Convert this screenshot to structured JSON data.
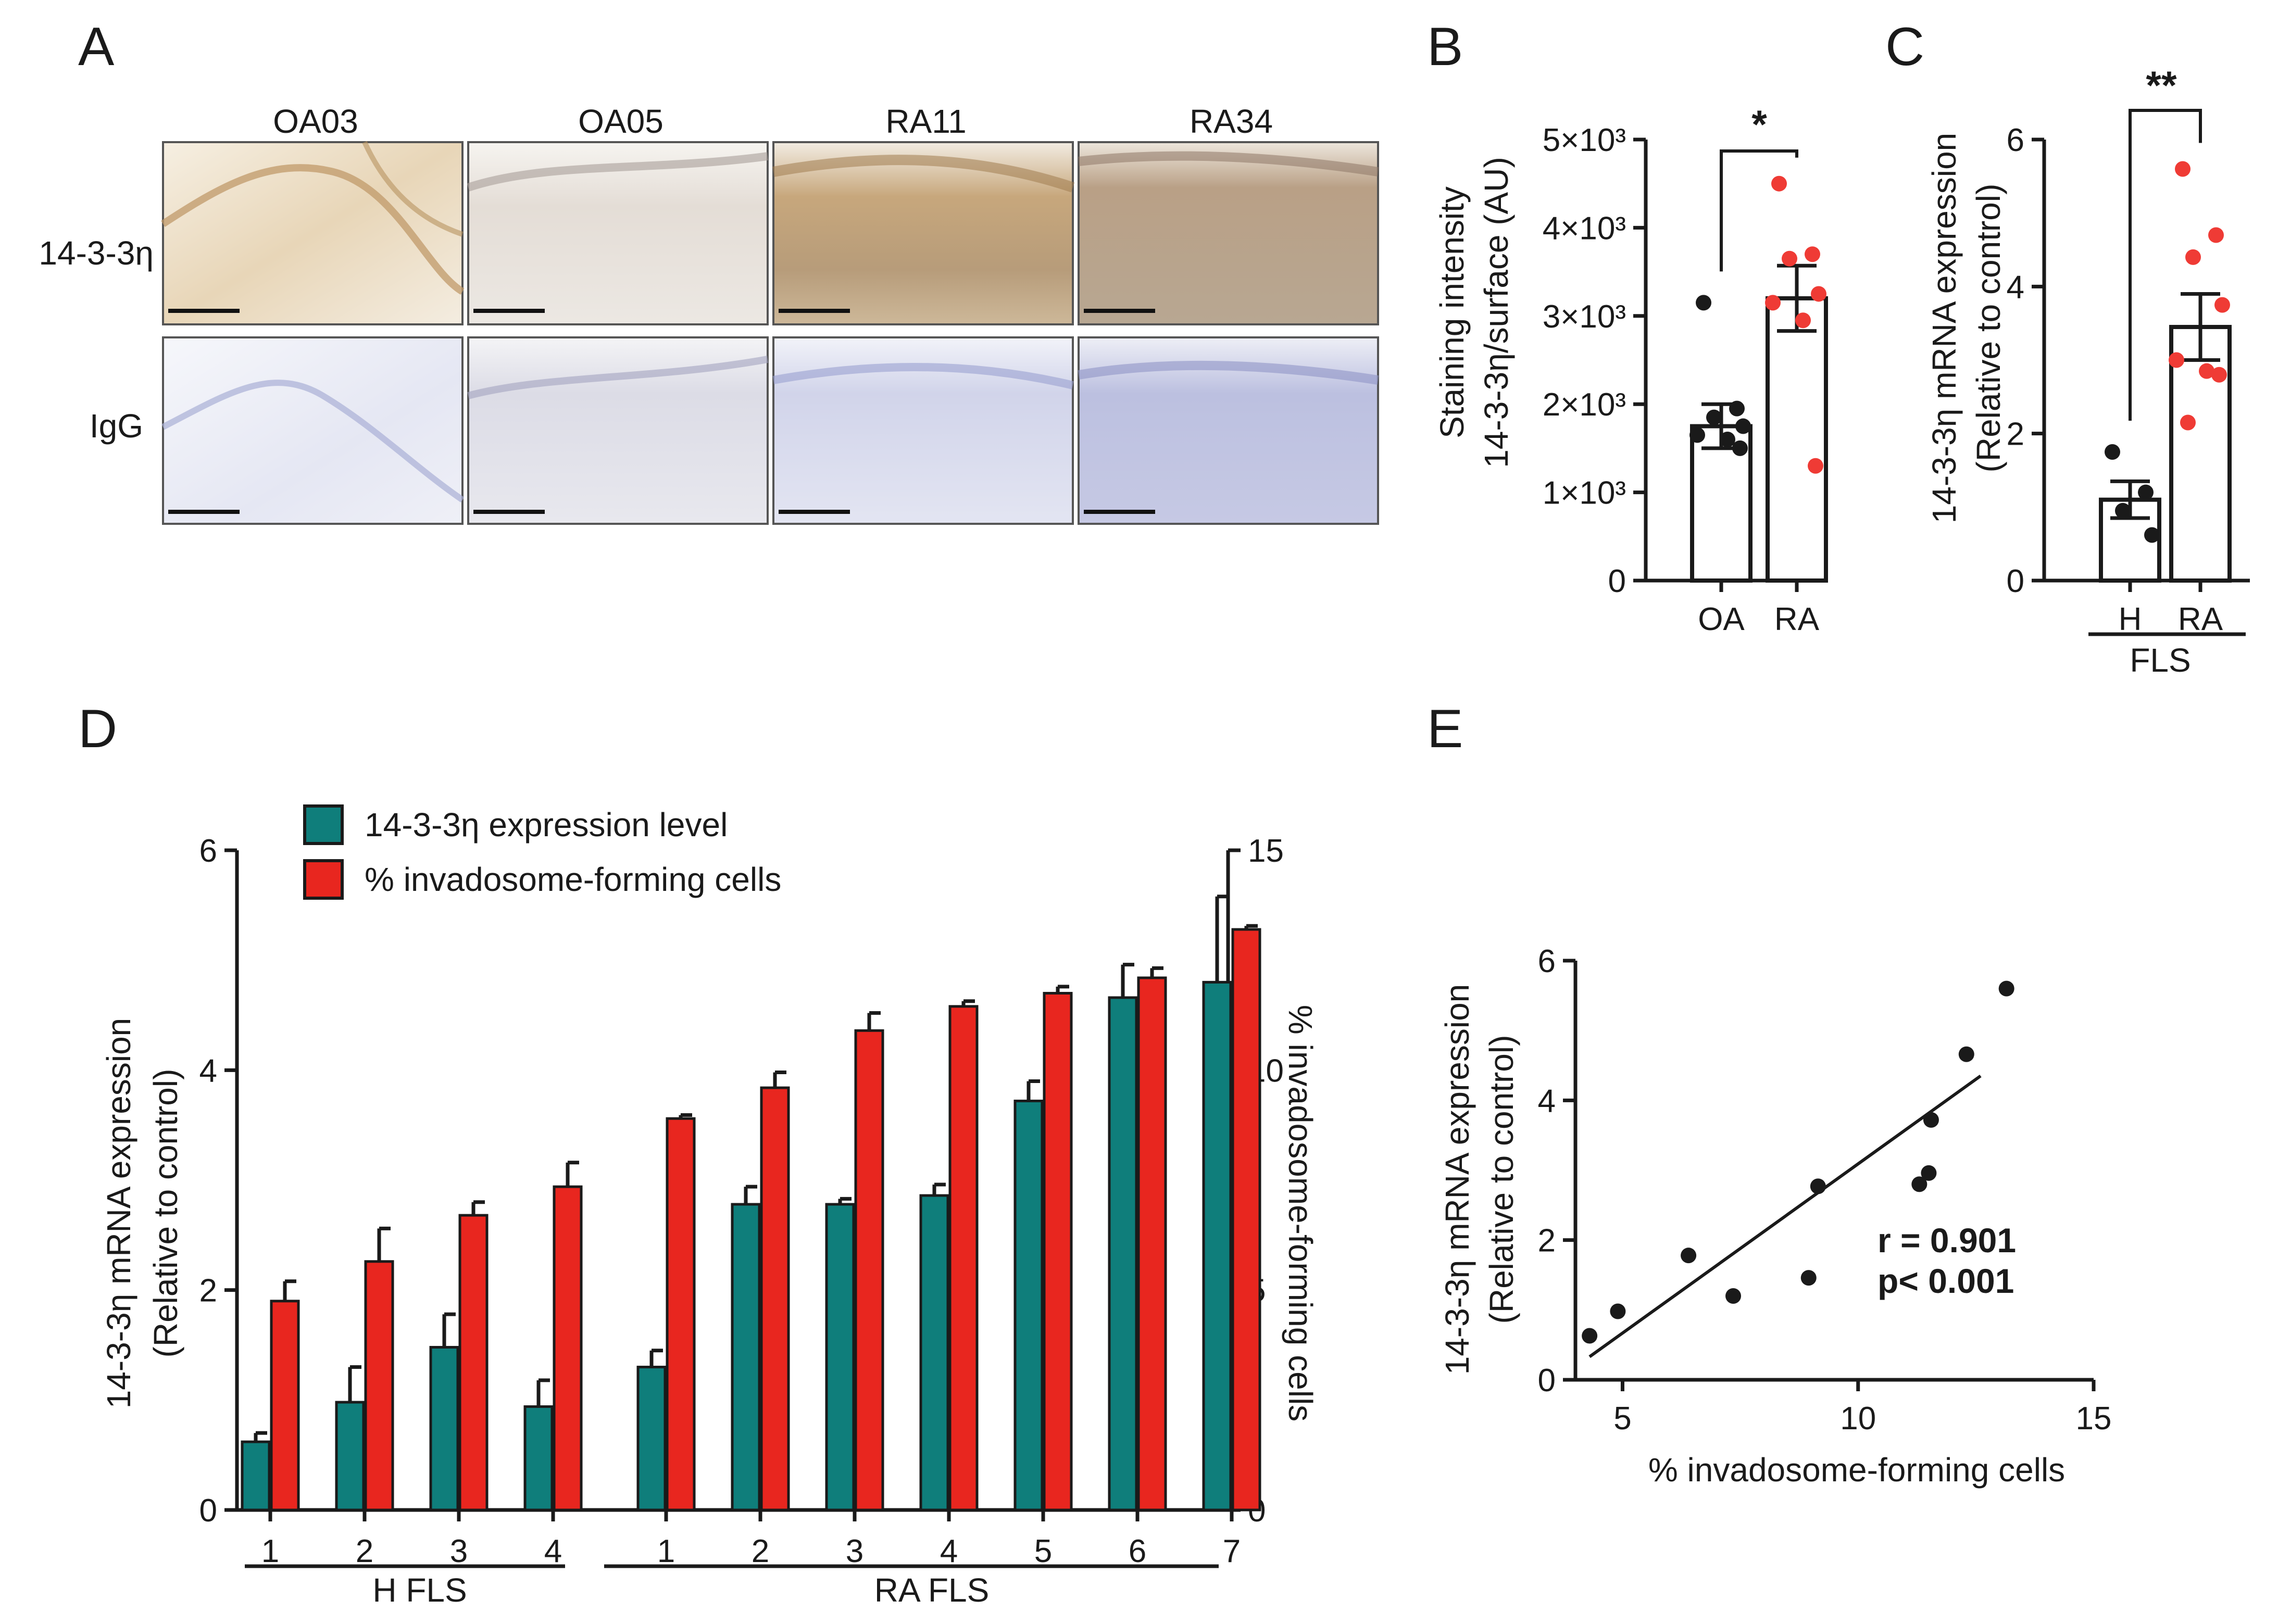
{
  "colors": {
    "teal": "#0f7e7b",
    "red": "#e8261f",
    "red_dot": "#ef3b35",
    "black": "#1a1a1a",
    "ihc_brown_bg": "#efe2cb",
    "ihc_brown_tissue": "#c9ad86",
    "igg_blue_bg": "#f3f4fa",
    "igg_blue_tissue": "#c7cbe6"
  },
  "panel_A": {
    "label": "A",
    "columns": [
      "OA03",
      "OA05",
      "RA11",
      "RA34"
    ],
    "rows": [
      "14-3-3η",
      "IgG"
    ],
    "micrographs": [
      {
        "row": 0,
        "col": 0,
        "stain": "brown-light"
      },
      {
        "row": 0,
        "col": 1,
        "stain": "pale"
      },
      {
        "row": 0,
        "col": 2,
        "stain": "brown-strong"
      },
      {
        "row": 0,
        "col": 3,
        "stain": "brown-purple"
      },
      {
        "row": 1,
        "col": 0,
        "stain": "blue-light"
      },
      {
        "row": 1,
        "col": 1,
        "stain": "blue-pale"
      },
      {
        "row": 1,
        "col": 2,
        "stain": "blue"
      },
      {
        "row": 1,
        "col": 3,
        "stain": "blue-strong"
      }
    ]
  },
  "panel_B": {
    "label": "B",
    "ylabel_line1": "Staining intensity",
    "ylabel_line2": "14-3-3η/surface (AU)",
    "yticks": [
      "0",
      "1×10³",
      "2×10³",
      "3×10³",
      "4×10³",
      "5×10³"
    ],
    "significance": "*",
    "chart_data": {
      "type": "bar",
      "categories": [
        "OA",
        "RA"
      ],
      "values": [
        1750,
        3200
      ],
      "sem": [
        250,
        370
      ],
      "ylim": [
        0,
        5000
      ],
      "points": {
        "OA": [
          3150,
          1950,
          1850,
          1750,
          1650,
          1600,
          1500
        ],
        "RA": [
          4500,
          3700,
          3650,
          3250,
          3150,
          2950,
          1300
        ]
      },
      "point_colors": {
        "OA": "#1a1a1a",
        "RA": "#ef3b35"
      }
    }
  },
  "panel_C": {
    "label": "C",
    "ylabel_line1": "14-3-3η mRNA expression",
    "ylabel_line2": "(Relative to control)",
    "yticks": [
      "0",
      "2",
      "4",
      "6"
    ],
    "group_label": "FLS",
    "significance": "**",
    "chart_data": {
      "type": "bar",
      "categories": [
        "H",
        "RA"
      ],
      "values": [
        1.1,
        3.45
      ],
      "sem": [
        0.25,
        0.45
      ],
      "ylim": [
        0,
        6
      ],
      "points": {
        "H": [
          1.75,
          1.2,
          0.95,
          0.62
        ],
        "RA": [
          5.6,
          4.7,
          4.4,
          3.75,
          3.0,
          2.85,
          2.8,
          2.15
        ]
      },
      "point_colors": {
        "H": "#1a1a1a",
        "RA": "#ef3b35"
      }
    }
  },
  "panel_D": {
    "label": "D",
    "ylabel_left_line1": "14-3-3η mRNA expression",
    "ylabel_left_line2": "(Relative to control)",
    "ylabel_right": "% invadosome-forming cells",
    "yticks_left": [
      "0",
      "2",
      "4",
      "6"
    ],
    "yticks_right": [
      "0",
      "5",
      "10",
      "15"
    ],
    "legend": [
      "14-3-3η expression level",
      "% invadosome-forming cells"
    ],
    "group_labels": [
      "H FLS",
      "RA FLS"
    ],
    "chart_data": {
      "type": "bar",
      "categories": [
        "1",
        "2",
        "3",
        "4",
        "1",
        "2",
        "3",
        "4",
        "5",
        "6",
        "7"
      ],
      "groups": [
        "H FLS",
        "H FLS",
        "H FLS",
        "H FLS",
        "RA FLS",
        "RA FLS",
        "RA FLS",
        "RA FLS",
        "RA FLS",
        "RA FLS",
        "RA FLS"
      ],
      "series": [
        {
          "name": "14-3-3η expression level",
          "axis": "left",
          "ylim": [
            0,
            6
          ],
          "values": [
            0.62,
            0.98,
            1.48,
            0.94,
            1.3,
            2.78,
            2.78,
            2.86,
            3.72,
            4.66,
            4.8
          ],
          "err": [
            0.08,
            0.32,
            0.3,
            0.24,
            0.15,
            0.16,
            0.05,
            0.1,
            0.18,
            0.3,
            0.78
          ]
        },
        {
          "name": "% invadosome-forming cells",
          "axis": "right",
          "ylim": [
            0,
            15
          ],
          "values": [
            4.75,
            5.65,
            6.7,
            7.35,
            8.9,
            9.6,
            10.9,
            11.45,
            11.75,
            12.1,
            13.2
          ],
          "err": [
            0.45,
            0.75,
            0.3,
            0.55,
            0.08,
            0.35,
            0.4,
            0.12,
            0.15,
            0.22,
            0.08
          ]
        }
      ]
    }
  },
  "panel_E": {
    "label": "E",
    "xlabel": "% invadosome-forming cells",
    "ylabel_line1": "14-3-3η mRNA expression",
    "ylabel_line2": "(Relative to control)",
    "xticks": [
      "5",
      "10",
      "15"
    ],
    "yticks": [
      "0",
      "2",
      "4",
      "6"
    ],
    "stat_r": "r = 0.901",
    "stat_p": "p< 0.001",
    "chart_data": {
      "type": "scatter",
      "xlim": [
        4,
        15
      ],
      "ylim": [
        0,
        6
      ],
      "x": [
        4.3,
        4.9,
        6.4,
        7.35,
        8.95,
        9.15,
        11.3,
        11.5,
        11.55,
        12.3,
        13.15
      ],
      "y": [
        0.63,
        0.98,
        1.78,
        1.2,
        1.46,
        2.77,
        2.8,
        2.96,
        3.72,
        4.66,
        5.6
      ],
      "fit_line": {
        "x": [
          4.3,
          12.6
        ],
        "y": [
          0.33,
          4.35
        ]
      }
    }
  }
}
